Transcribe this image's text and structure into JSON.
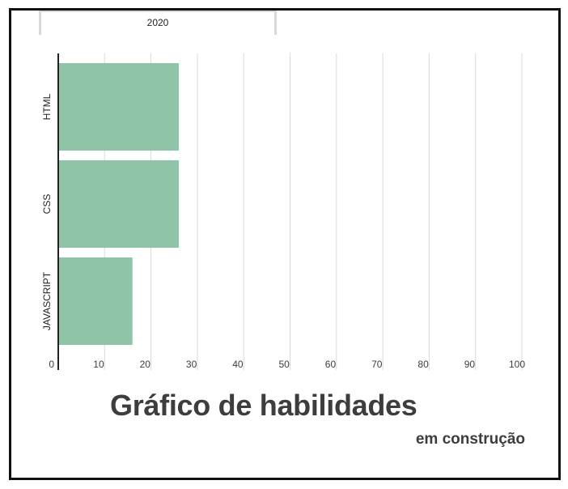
{
  "tab": {
    "label": "2020"
  },
  "title": "Gráfico de habilidades",
  "subtitle": "em construção",
  "colors": {
    "bar": "#8fc4a8",
    "grid": "#d9d9d9",
    "axis": "#222222",
    "text": "#3d3d3d"
  },
  "chart_data": {
    "type": "bar",
    "orientation": "horizontal",
    "categories": [
      "HTML",
      "CSS",
      "JAVASCRIPT"
    ],
    "values": [
      26,
      26,
      16
    ],
    "xlim": [
      0,
      100
    ],
    "xticks": [
      0,
      10,
      20,
      30,
      40,
      50,
      60,
      70,
      80,
      90,
      100
    ],
    "grid": true
  }
}
